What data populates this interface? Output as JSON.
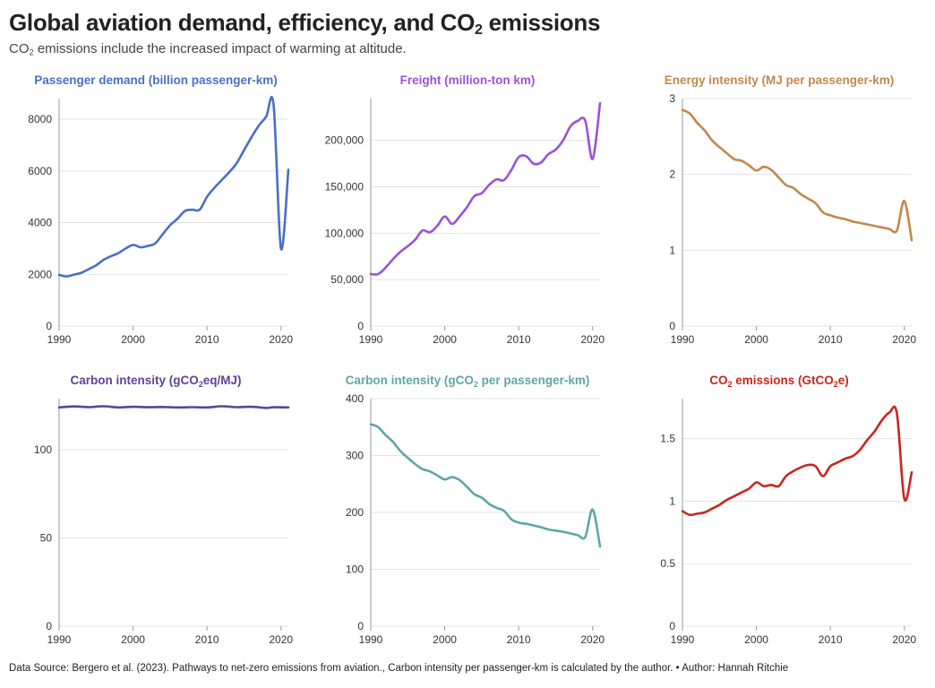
{
  "title": {
    "prefix": "Global aviation demand, efficiency, and CO",
    "sub": "2",
    "suffix": " emissions"
  },
  "subtitle": {
    "prefix": "CO",
    "sub": "2",
    "suffix": " emissions include the increased impact of warming at altitude."
  },
  "footer": "Data Source: Bergero et al. (2023). Pathways to net-zero emissions from aviation., Carbon intensity per passenger-km is calculated by the author. • Author: Hannah Ritchie",
  "chart_data": [
    {
      "type": "line",
      "title": [
        {
          "t": "Passenger demand (billion passenger-km)"
        }
      ],
      "color": "#4a6fc4",
      "xlim": [
        1990,
        2021
      ],
      "ylim": [
        0,
        8800
      ],
      "xticks": [
        1990,
        2000,
        2010,
        2020
      ],
      "yticks": [
        0,
        2000,
        4000,
        6000,
        8000
      ],
      "ytick_labels": [
        "0",
        "2000",
        "4000",
        "6000",
        "8000"
      ],
      "x": [
        1990,
        1991,
        1992,
        1993,
        1994,
        1995,
        1996,
        1997,
        1998,
        1999,
        2000,
        2001,
        2002,
        2003,
        2004,
        2005,
        2006,
        2007,
        2008,
        2009,
        2010,
        2011,
        2012,
        2013,
        2014,
        2015,
        2016,
        2017,
        2018,
        2019,
        2020,
        2021
      ],
      "values": [
        1980,
        1920,
        1990,
        2060,
        2200,
        2350,
        2560,
        2700,
        2820,
        3000,
        3140,
        3050,
        3100,
        3200,
        3550,
        3900,
        4150,
        4450,
        4500,
        4500,
        5000,
        5350,
        5650,
        5950,
        6300,
        6800,
        7300,
        7750,
        8100,
        8550,
        3000,
        6050
      ]
    },
    {
      "type": "line",
      "title": [
        {
          "t": "Freight (million-ton km)"
        }
      ],
      "color": "#9b51d8",
      "xlim": [
        1990,
        2021
      ],
      "ylim": [
        0,
        245000
      ],
      "xticks": [
        1990,
        2000,
        2010,
        2020
      ],
      "yticks": [
        0,
        50000,
        100000,
        150000,
        200000
      ],
      "ytick_labels": [
        "0",
        "50,000",
        "100,000",
        "150,000",
        "200,000"
      ],
      "x": [
        1990,
        1991,
        1992,
        1993,
        1994,
        1995,
        1996,
        1997,
        1998,
        1999,
        2000,
        2001,
        2002,
        2003,
        2004,
        2005,
        2006,
        2007,
        2008,
        2009,
        2010,
        2011,
        2012,
        2013,
        2014,
        2015,
        2016,
        2017,
        2018,
        2019,
        2020,
        2021
      ],
      "values": [
        56000,
        56000,
        63000,
        72000,
        80000,
        86000,
        93000,
        103000,
        101000,
        108000,
        118000,
        110000,
        118000,
        128000,
        140000,
        143000,
        152000,
        158000,
        157000,
        168000,
        182000,
        183000,
        175000,
        176000,
        185000,
        190000,
        200000,
        215000,
        221000,
        221000,
        180000,
        240000
      ]
    },
    {
      "type": "line",
      "title": [
        {
          "t": "Energy intensity (MJ per passenger-km)"
        }
      ],
      "color": "#c4874a",
      "xlim": [
        1990,
        2021
      ],
      "ylim": [
        0,
        3
      ],
      "xticks": [
        1990,
        2000,
        2010,
        2020
      ],
      "yticks": [
        0,
        1,
        2,
        3
      ],
      "ytick_labels": [
        "0",
        "1",
        "2",
        "3"
      ],
      "x": [
        1990,
        1991,
        1992,
        1993,
        1994,
        1995,
        1996,
        1997,
        1998,
        1999,
        2000,
        2001,
        2002,
        2003,
        2004,
        2005,
        2006,
        2007,
        2008,
        2009,
        2010,
        2011,
        2012,
        2013,
        2014,
        2015,
        2016,
        2017,
        2018,
        2019,
        2020,
        2021
      ],
      "values": [
        2.85,
        2.8,
        2.68,
        2.58,
        2.45,
        2.36,
        2.28,
        2.2,
        2.18,
        2.12,
        2.05,
        2.1,
        2.06,
        1.96,
        1.86,
        1.82,
        1.74,
        1.68,
        1.62,
        1.5,
        1.46,
        1.43,
        1.41,
        1.38,
        1.36,
        1.34,
        1.32,
        1.3,
        1.28,
        1.26,
        1.65,
        1.13
      ]
    },
    {
      "type": "line",
      "title": [
        {
          "t": "Carbon intensity (gCO"
        },
        {
          "t": "2",
          "sub": true
        },
        {
          "t": "eq/MJ)"
        }
      ],
      "color": "#5e4399",
      "xlim": [
        1990,
        2021
      ],
      "ylim": [
        0,
        129
      ],
      "xticks": [
        1990,
        2000,
        2010,
        2020
      ],
      "yticks": [
        0,
        50,
        100
      ],
      "ytick_labels": [
        "0",
        "50",
        "100"
      ],
      "x": [
        1990,
        1992,
        1994,
        1996,
        1998,
        2000,
        2002,
        2004,
        2006,
        2008,
        2010,
        2012,
        2014,
        2016,
        2018,
        2019,
        2021
      ],
      "values": [
        124,
        124.6,
        124.2,
        124.7,
        124,
        124.4,
        124.1,
        124.3,
        124,
        124.2,
        124,
        124.7,
        124.2,
        124.4,
        123.7,
        124.1,
        124
      ]
    },
    {
      "type": "line",
      "title": [
        {
          "t": "Carbon intensity (gCO"
        },
        {
          "t": "2",
          "sub": true
        },
        {
          "t": " per passenger-km)"
        }
      ],
      "color": "#5fa6a6",
      "xlim": [
        1990,
        2021
      ],
      "ylim": [
        0,
        400
      ],
      "xticks": [
        1990,
        2000,
        2010,
        2020
      ],
      "yticks": [
        0,
        100,
        200,
        300,
        400
      ],
      "ytick_labels": [
        "0",
        "100",
        "200",
        "300",
        "400"
      ],
      "x": [
        1990,
        1991,
        1992,
        1993,
        1994,
        1995,
        1996,
        1997,
        1998,
        1999,
        2000,
        2001,
        2002,
        2003,
        2004,
        2005,
        2006,
        2007,
        2008,
        2009,
        2010,
        2011,
        2012,
        2013,
        2014,
        2015,
        2016,
        2017,
        2018,
        2019,
        2020,
        2021
      ],
      "values": [
        355,
        350,
        336,
        324,
        308,
        296,
        285,
        276,
        272,
        265,
        258,
        262,
        257,
        245,
        232,
        226,
        215,
        208,
        203,
        188,
        182,
        180,
        177,
        174,
        170,
        168,
        166,
        163,
        160,
        157,
        205,
        140
      ]
    },
    {
      "type": "line",
      "title": [
        {
          "t": "CO"
        },
        {
          "t": "2",
          "sub": true
        },
        {
          "t": " emissions (GtCO"
        },
        {
          "t": "2",
          "sub": true
        },
        {
          "t": "e)"
        }
      ],
      "color": "#c9261d",
      "xlim": [
        1990,
        2021
      ],
      "ylim": [
        0,
        1.82
      ],
      "xticks": [
        1990,
        2000,
        2010,
        2020
      ],
      "yticks": [
        0,
        0.5,
        1,
        1.5
      ],
      "ytick_labels": [
        "0",
        "0.5",
        "1",
        "1.5"
      ],
      "x": [
        1990,
        1991,
        1992,
        1993,
        1994,
        1995,
        1996,
        1997,
        1998,
        1999,
        2000,
        2001,
        2002,
        2003,
        2004,
        2005,
        2006,
        2007,
        2008,
        2009,
        2010,
        2011,
        2012,
        2013,
        2014,
        2015,
        2016,
        2017,
        2018,
        2019,
        2020,
        2021
      ],
      "values": [
        0.92,
        0.89,
        0.9,
        0.91,
        0.94,
        0.97,
        1.01,
        1.04,
        1.07,
        1.1,
        1.15,
        1.12,
        1.13,
        1.12,
        1.2,
        1.24,
        1.27,
        1.29,
        1.28,
        1.2,
        1.28,
        1.31,
        1.34,
        1.36,
        1.41,
        1.49,
        1.56,
        1.65,
        1.71,
        1.7,
        1.02,
        1.23
      ]
    }
  ]
}
